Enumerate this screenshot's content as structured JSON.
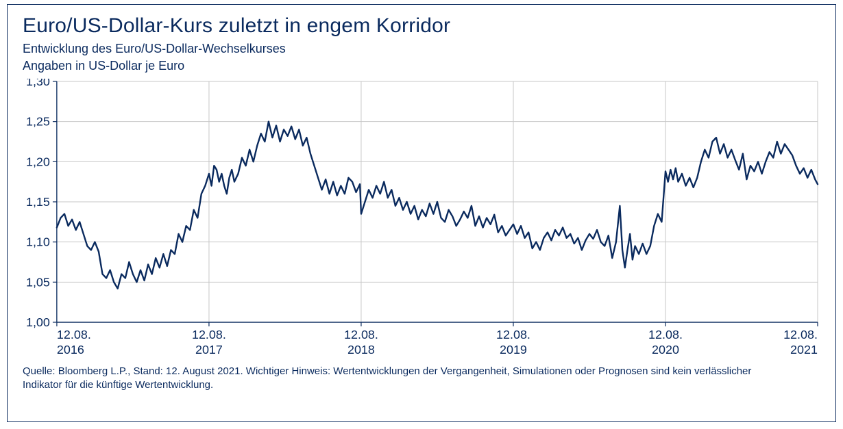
{
  "header": {
    "title": "Euro/US-Dollar-Kurs zuletzt in engem Korridor",
    "subtitle": "Entwicklung des Euro/US-Dollar-Wechselkurses",
    "unit": "Angaben in US-Dollar je Euro"
  },
  "footnote": "Quelle: Bloomberg L.P., Stand: 12. August 2021. Wichtiger Hinweis: Wertentwicklungen der Vergangenheit, Simulationen oder Prognosen sind kein verlässlicher Indikator für die künftige Wertentwicklung.",
  "chart": {
    "type": "line",
    "background_color": "#ffffff",
    "frame_border_color": "#0a2a5e",
    "grid_color": "#c7c7c7",
    "axis_color": "#0a2a5e",
    "line_color": "#0a2a5e",
    "line_width": 2.4,
    "text_color": "#0a2a5e",
    "tick_fontsize": 18,
    "y": {
      "min": 1.0,
      "max": 1.3,
      "ticks": [
        1.0,
        1.05,
        1.1,
        1.15,
        1.2,
        1.25,
        1.3
      ],
      "tick_labels": [
        "1,00",
        "1,05",
        "1,10",
        "1,15",
        "1,20",
        "1,25",
        "1,30"
      ]
    },
    "x": {
      "min": 0,
      "max": 60,
      "ticks": [
        0,
        12,
        24,
        36,
        48,
        60
      ],
      "tick_labels_line1": [
        "12.08.",
        "12.08.",
        "12.08.",
        "12.08.",
        "12.08.",
        "12.08."
      ],
      "tick_labels_line2": [
        "2016",
        "2017",
        "2018",
        "2019",
        "2020",
        "2021"
      ]
    },
    "series": [
      {
        "name": "EURUSD",
        "data": [
          [
            0.0,
            1.118
          ],
          [
            0.3,
            1.13
          ],
          [
            0.6,
            1.135
          ],
          [
            0.9,
            1.12
          ],
          [
            1.2,
            1.128
          ],
          [
            1.5,
            1.115
          ],
          [
            1.8,
            1.125
          ],
          [
            2.1,
            1.11
          ],
          [
            2.4,
            1.095
          ],
          [
            2.7,
            1.09
          ],
          [
            3.0,
            1.1
          ],
          [
            3.3,
            1.088
          ],
          [
            3.6,
            1.06
          ],
          [
            3.9,
            1.055
          ],
          [
            4.2,
            1.065
          ],
          [
            4.5,
            1.05
          ],
          [
            4.8,
            1.042
          ],
          [
            5.1,
            1.06
          ],
          [
            5.4,
            1.055
          ],
          [
            5.7,
            1.075
          ],
          [
            6.0,
            1.06
          ],
          [
            6.3,
            1.05
          ],
          [
            6.6,
            1.065
          ],
          [
            6.9,
            1.052
          ],
          [
            7.2,
            1.072
          ],
          [
            7.5,
            1.06
          ],
          [
            7.8,
            1.08
          ],
          [
            8.1,
            1.068
          ],
          [
            8.4,
            1.085
          ],
          [
            8.7,
            1.07
          ],
          [
            9.0,
            1.09
          ],
          [
            9.3,
            1.085
          ],
          [
            9.6,
            1.11
          ],
          [
            9.9,
            1.1
          ],
          [
            10.2,
            1.12
          ],
          [
            10.5,
            1.115
          ],
          [
            10.8,
            1.14
          ],
          [
            11.1,
            1.13
          ],
          [
            11.4,
            1.16
          ],
          [
            11.7,
            1.17
          ],
          [
            12.0,
            1.185
          ],
          [
            12.2,
            1.17
          ],
          [
            12.4,
            1.195
          ],
          [
            12.6,
            1.19
          ],
          [
            12.8,
            1.175
          ],
          [
            13.0,
            1.185
          ],
          [
            13.2,
            1.17
          ],
          [
            13.4,
            1.16
          ],
          [
            13.6,
            1.18
          ],
          [
            13.8,
            1.19
          ],
          [
            14.0,
            1.175
          ],
          [
            14.3,
            1.185
          ],
          [
            14.6,
            1.205
          ],
          [
            14.9,
            1.195
          ],
          [
            15.2,
            1.215
          ],
          [
            15.5,
            1.2
          ],
          [
            15.8,
            1.22
          ],
          [
            16.1,
            1.235
          ],
          [
            16.4,
            1.225
          ],
          [
            16.7,
            1.25
          ],
          [
            17.0,
            1.23
          ],
          [
            17.3,
            1.245
          ],
          [
            17.6,
            1.225
          ],
          [
            17.9,
            1.24
          ],
          [
            18.2,
            1.232
          ],
          [
            18.5,
            1.244
          ],
          [
            18.8,
            1.228
          ],
          [
            19.1,
            1.24
          ],
          [
            19.4,
            1.22
          ],
          [
            19.7,
            1.23
          ],
          [
            20.0,
            1.21
          ],
          [
            20.3,
            1.195
          ],
          [
            20.6,
            1.18
          ],
          [
            20.9,
            1.165
          ],
          [
            21.2,
            1.178
          ],
          [
            21.5,
            1.16
          ],
          [
            21.8,
            1.175
          ],
          [
            22.1,
            1.158
          ],
          [
            22.4,
            1.17
          ],
          [
            22.7,
            1.16
          ],
          [
            23.0,
            1.18
          ],
          [
            23.3,
            1.175
          ],
          [
            23.6,
            1.162
          ],
          [
            23.9,
            1.172
          ],
          [
            24.0,
            1.135
          ],
          [
            24.3,
            1.15
          ],
          [
            24.6,
            1.165
          ],
          [
            24.9,
            1.155
          ],
          [
            25.2,
            1.17
          ],
          [
            25.5,
            1.16
          ],
          [
            25.8,
            1.175
          ],
          [
            26.1,
            1.155
          ],
          [
            26.4,
            1.165
          ],
          [
            26.7,
            1.145
          ],
          [
            27.0,
            1.155
          ],
          [
            27.3,
            1.14
          ],
          [
            27.6,
            1.15
          ],
          [
            27.9,
            1.135
          ],
          [
            28.2,
            1.145
          ],
          [
            28.5,
            1.128
          ],
          [
            28.8,
            1.14
          ],
          [
            29.1,
            1.132
          ],
          [
            29.4,
            1.148
          ],
          [
            29.7,
            1.135
          ],
          [
            30.0,
            1.15
          ],
          [
            30.3,
            1.13
          ],
          [
            30.6,
            1.125
          ],
          [
            30.9,
            1.14
          ],
          [
            31.2,
            1.132
          ],
          [
            31.5,
            1.12
          ],
          [
            31.8,
            1.128
          ],
          [
            32.1,
            1.138
          ],
          [
            32.4,
            1.13
          ],
          [
            32.7,
            1.145
          ],
          [
            33.0,
            1.12
          ],
          [
            33.3,
            1.132
          ],
          [
            33.6,
            1.118
          ],
          [
            33.9,
            1.13
          ],
          [
            34.2,
            1.122
          ],
          [
            34.5,
            1.134
          ],
          [
            34.8,
            1.112
          ],
          [
            35.1,
            1.12
          ],
          [
            35.4,
            1.108
          ],
          [
            35.7,
            1.115
          ],
          [
            36.0,
            1.122
          ],
          [
            36.3,
            1.11
          ],
          [
            36.6,
            1.12
          ],
          [
            36.9,
            1.105
          ],
          [
            37.2,
            1.112
          ],
          [
            37.5,
            1.092
          ],
          [
            37.8,
            1.1
          ],
          [
            38.1,
            1.09
          ],
          [
            38.4,
            1.105
          ],
          [
            38.7,
            1.112
          ],
          [
            39.0,
            1.102
          ],
          [
            39.3,
            1.115
          ],
          [
            39.6,
            1.108
          ],
          [
            39.9,
            1.118
          ],
          [
            40.2,
            1.105
          ],
          [
            40.5,
            1.11
          ],
          [
            40.8,
            1.098
          ],
          [
            41.1,
            1.105
          ],
          [
            41.4,
            1.09
          ],
          [
            41.7,
            1.102
          ],
          [
            42.0,
            1.11
          ],
          [
            42.3,
            1.104
          ],
          [
            42.6,
            1.115
          ],
          [
            42.9,
            1.1
          ],
          [
            43.2,
            1.095
          ],
          [
            43.5,
            1.108
          ],
          [
            43.8,
            1.08
          ],
          [
            44.1,
            1.1
          ],
          [
            44.4,
            1.145
          ],
          [
            44.6,
            1.09
          ],
          [
            44.8,
            1.068
          ],
          [
            45.0,
            1.09
          ],
          [
            45.2,
            1.11
          ],
          [
            45.4,
            1.078
          ],
          [
            45.6,
            1.095
          ],
          [
            45.9,
            1.085
          ],
          [
            46.2,
            1.098
          ],
          [
            46.5,
            1.085
          ],
          [
            46.8,
            1.095
          ],
          [
            47.1,
            1.12
          ],
          [
            47.4,
            1.135
          ],
          [
            47.7,
            1.125
          ],
          [
            48.0,
            1.188
          ],
          [
            48.2,
            1.175
          ],
          [
            48.4,
            1.19
          ],
          [
            48.6,
            1.178
          ],
          [
            48.8,
            1.192
          ],
          [
            49.0,
            1.175
          ],
          [
            49.3,
            1.185
          ],
          [
            49.6,
            1.17
          ],
          [
            49.9,
            1.18
          ],
          [
            50.2,
            1.168
          ],
          [
            50.5,
            1.18
          ],
          [
            50.8,
            1.2
          ],
          [
            51.1,
            1.215
          ],
          [
            51.4,
            1.205
          ],
          [
            51.7,
            1.225
          ],
          [
            52.0,
            1.23
          ],
          [
            52.3,
            1.21
          ],
          [
            52.6,
            1.222
          ],
          [
            52.9,
            1.205
          ],
          [
            53.2,
            1.215
          ],
          [
            53.5,
            1.202
          ],
          [
            53.8,
            1.19
          ],
          [
            54.1,
            1.21
          ],
          [
            54.4,
            1.178
          ],
          [
            54.7,
            1.195
          ],
          [
            55.0,
            1.188
          ],
          [
            55.3,
            1.2
          ],
          [
            55.6,
            1.185
          ],
          [
            55.9,
            1.2
          ],
          [
            56.2,
            1.212
          ],
          [
            56.5,
            1.205
          ],
          [
            56.8,
            1.225
          ],
          [
            57.1,
            1.21
          ],
          [
            57.4,
            1.222
          ],
          [
            57.7,
            1.215
          ],
          [
            58.0,
            1.208
          ],
          [
            58.3,
            1.195
          ],
          [
            58.6,
            1.185
          ],
          [
            58.9,
            1.192
          ],
          [
            59.2,
            1.18
          ],
          [
            59.5,
            1.19
          ],
          [
            59.8,
            1.178
          ],
          [
            60.0,
            1.172
          ]
        ]
      }
    ]
  }
}
